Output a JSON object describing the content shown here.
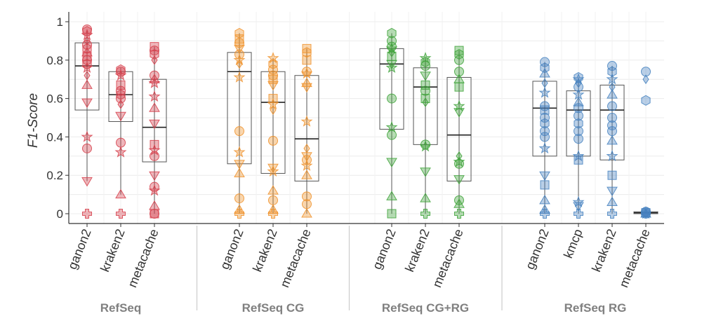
{
  "chart_data": {
    "type": "box",
    "ylabel": "F1-Score",
    "ylim": [
      -0.05,
      1.05
    ],
    "yticks": [
      "0",
      "0.2",
      "0.4",
      "0.6",
      "0.8",
      "1"
    ],
    "grid": true,
    "groups": [
      {
        "name": "RefSeq",
        "color": "#d6404b",
        "tools": [
          {
            "name": "ganon2",
            "q1": 0.54,
            "median": 0.77,
            "q3": 0.89,
            "whisker_low": 0.17,
            "whisker_high": 0.96,
            "points": [
              [
                0.96,
                "circle"
              ],
              [
                0.95,
                "hexagon"
              ],
              [
                0.93,
                "star"
              ],
              [
                0.9,
                "diamond"
              ],
              [
                0.88,
                "circle"
              ],
              [
                0.86,
                "hexagon"
              ],
              [
                0.84,
                "triangle-up"
              ],
              [
                0.82,
                "square"
              ],
              [
                0.8,
                "circle"
              ],
              [
                0.78,
                "hexagon"
              ],
              [
                0.76,
                "star"
              ],
              [
                0.72,
                "diamond"
              ],
              [
                0.67,
                "triangle-up"
              ],
              [
                0.58,
                "triangle-down"
              ],
              [
                0.4,
                "star"
              ],
              [
                0.34,
                "circle"
              ],
              [
                0.17,
                "triangle-down"
              ],
              [
                0.0,
                "plus"
              ]
            ]
          },
          {
            "name": "kraken2",
            "q1": 0.48,
            "median": 0.62,
            "q3": 0.74,
            "whisker_low": 0.1,
            "whisker_high": 0.76,
            "points": [
              [
                0.75,
                "hexagon"
              ],
              [
                0.74,
                "circle"
              ],
              [
                0.72,
                "star"
              ],
              [
                0.67,
                "square"
              ],
              [
                0.64,
                "circle"
              ],
              [
                0.62,
                "hexagon"
              ],
              [
                0.6,
                "circle"
              ],
              [
                0.57,
                "diamond"
              ],
              [
                0.51,
                "triangle-down"
              ],
              [
                0.37,
                "circle"
              ],
              [
                0.32,
                "star"
              ],
              [
                0.1,
                "triangle-up"
              ],
              [
                0.0,
                "plus"
              ]
            ]
          },
          {
            "name": "metacache",
            "q1": 0.27,
            "median": 0.45,
            "q3": 0.7,
            "whisker_low": 0.0,
            "whisker_high": 0.87,
            "points": [
              [
                0.87,
                "square"
              ],
              [
                0.85,
                "circle"
              ],
              [
                0.83,
                "hexagon"
              ],
              [
                0.8,
                "diamond"
              ],
              [
                0.72,
                "circle"
              ],
              [
                0.7,
                "triangle-up"
              ],
              [
                0.68,
                "star"
              ],
              [
                0.61,
                "star"
              ],
              [
                0.55,
                "triangle-up"
              ],
              [
                0.47,
                "triangle-down"
              ],
              [
                0.36,
                "square"
              ],
              [
                0.33,
                "star"
              ],
              [
                0.3,
                "circle"
              ],
              [
                0.2,
                "triangle-down"
              ],
              [
                0.14,
                "circle"
              ],
              [
                0.12,
                "star"
              ],
              [
                0.04,
                "triangle-up"
              ],
              [
                0.0,
                "circle"
              ],
              [
                0.0,
                "square"
              ]
            ]
          }
        ]
      },
      {
        "name": "RefSeq CG",
        "color": "#f0922b",
        "tools": [
          {
            "name": "ganon2",
            "q1": 0.26,
            "median": 0.74,
            "q3": 0.84,
            "whisker_low": 0.0,
            "whisker_high": 0.94,
            "points": [
              [
                0.94,
                "hexagon"
              ],
              [
                0.91,
                "square"
              ],
              [
                0.89,
                "circle"
              ],
              [
                0.86,
                "triangle-down"
              ],
              [
                0.83,
                "circle"
              ],
              [
                0.8,
                "star"
              ],
              [
                0.78,
                "diamond"
              ],
              [
                0.71,
                "star"
              ],
              [
                0.43,
                "circle"
              ],
              [
                0.32,
                "star"
              ],
              [
                0.26,
                "triangle-down"
              ],
              [
                0.21,
                "triangle-up"
              ],
              [
                0.08,
                "circle"
              ],
              [
                0.02,
                "triangle-up"
              ],
              [
                0.0,
                "plus"
              ]
            ]
          },
          {
            "name": "kraken2",
            "q1": 0.21,
            "median": 0.58,
            "q3": 0.74,
            "whisker_low": 0.0,
            "whisker_high": 0.81,
            "points": [
              [
                0.81,
                "star"
              ],
              [
                0.78,
                "hexagon"
              ],
              [
                0.75,
                "circle"
              ],
              [
                0.72,
                "circle"
              ],
              [
                0.7,
                "square"
              ],
              [
                0.67,
                "triangle-down"
              ],
              [
                0.6,
                "square"
              ],
              [
                0.57,
                "star"
              ],
              [
                0.54,
                "diamond"
              ],
              [
                0.38,
                "circle"
              ],
              [
                0.24,
                "triangle-down"
              ],
              [
                0.22,
                "star"
              ],
              [
                0.12,
                "triangle-up"
              ],
              [
                0.07,
                "circle"
              ],
              [
                0.02,
                "triangle-up"
              ],
              [
                0.0,
                "plus"
              ]
            ]
          },
          {
            "name": "metacache",
            "q1": 0.17,
            "median": 0.39,
            "q3": 0.72,
            "whisker_low": 0.0,
            "whisker_high": 0.86,
            "points": [
              [
                0.86,
                "square"
              ],
              [
                0.84,
                "hexagon"
              ],
              [
                0.8,
                "square"
              ],
              [
                0.74,
                "circle"
              ],
              [
                0.73,
                "star"
              ],
              [
                0.68,
                "triangle-up"
              ],
              [
                0.66,
                "triangle-down"
              ],
              [
                0.48,
                "star"
              ],
              [
                0.34,
                "diamond"
              ],
              [
                0.3,
                "triangle-down"
              ],
              [
                0.28,
                "circle"
              ],
              [
                0.25,
                "star"
              ],
              [
                0.2,
                "triangle-up"
              ],
              [
                0.09,
                "circle"
              ],
              [
                0.05,
                "circle"
              ],
              [
                0.0,
                "triangle-up"
              ]
            ]
          }
        ]
      },
      {
        "name": "RefSeq CG+RG",
        "color": "#3ea33a",
        "tools": [
          {
            "name": "ganon2",
            "q1": 0.44,
            "median": 0.78,
            "q3": 0.86,
            "whisker_low": 0.0,
            "whisker_high": 0.94,
            "points": [
              [
                0.94,
                "hexagon"
              ],
              [
                0.9,
                "circle"
              ],
              [
                0.87,
                "circle"
              ],
              [
                0.86,
                "star"
              ],
              [
                0.84,
                "diamond"
              ],
              [
                0.82,
                "square"
              ],
              [
                0.78,
                "triangle-down"
              ],
              [
                0.76,
                "star"
              ],
              [
                0.6,
                "circle"
              ],
              [
                0.45,
                "star"
              ],
              [
                0.41,
                "circle"
              ],
              [
                0.27,
                "triangle-down"
              ],
              [
                0.09,
                "triangle-up"
              ],
              [
                0.0,
                "square"
              ]
            ]
          },
          {
            "name": "kraken2",
            "q1": 0.36,
            "median": 0.66,
            "q3": 0.76,
            "whisker_low": 0.0,
            "whisker_high": 0.81,
            "points": [
              [
                0.81,
                "star"
              ],
              [
                0.79,
                "hexagon"
              ],
              [
                0.77,
                "circle"
              ],
              [
                0.72,
                "triangle-down"
              ],
              [
                0.67,
                "square"
              ],
              [
                0.64,
                "circle"
              ],
              [
                0.6,
                "square"
              ],
              [
                0.58,
                "diamond"
              ],
              [
                0.36,
                "circle"
              ],
              [
                0.35,
                "star"
              ],
              [
                0.22,
                "triangle-down"
              ],
              [
                0.08,
                "triangle-up"
              ],
              [
                0.0,
                "plus"
              ]
            ]
          },
          {
            "name": "metacache",
            "q1": 0.17,
            "median": 0.41,
            "q3": 0.71,
            "whisker_low": 0.0,
            "whisker_high": 0.85,
            "points": [
              [
                0.85,
                "square"
              ],
              [
                0.83,
                "hexagon"
              ],
              [
                0.8,
                "circle"
              ],
              [
                0.74,
                "circle"
              ],
              [
                0.7,
                "triangle-up"
              ],
              [
                0.66,
                "square"
              ],
              [
                0.56,
                "star"
              ],
              [
                0.53,
                "triangle-down"
              ],
              [
                0.3,
                "diamond"
              ],
              [
                0.27,
                "star"
              ],
              [
                0.26,
                "circle"
              ],
              [
                0.18,
                "triangle-down"
              ],
              [
                0.07,
                "circle"
              ],
              [
                0.05,
                "triangle-up"
              ],
              [
                0.0,
                "plus"
              ]
            ]
          }
        ]
      },
      {
        "name": "RefSeq RG",
        "color": "#4682c0",
        "tools": [
          {
            "name": "ganon2",
            "q1": 0.3,
            "median": 0.55,
            "q3": 0.69,
            "whisker_low": 0.0,
            "whisker_high": 0.79,
            "points": [
              [
                0.79,
                "circle"
              ],
              [
                0.76,
                "hexagon"
              ],
              [
                0.73,
                "triangle-up"
              ],
              [
                0.68,
                "diamond"
              ],
              [
                0.63,
                "star"
              ],
              [
                0.56,
                "circle"
              ],
              [
                0.54,
                "square"
              ],
              [
                0.5,
                "circle"
              ],
              [
                0.47,
                "hexagon"
              ],
              [
                0.43,
                "circle"
              ],
              [
                0.4,
                "circle"
              ],
              [
                0.34,
                "star"
              ],
              [
                0.2,
                "triangle-down"
              ],
              [
                0.15,
                "square"
              ],
              [
                0.07,
                "triangle-up"
              ],
              [
                0.02,
                "triangle-up"
              ],
              [
                0.0,
                "plus"
              ]
            ]
          },
          {
            "name": "kmcp",
            "q1": 0.3,
            "median": 0.54,
            "q3": 0.64,
            "whisker_low": 0.0,
            "whisker_high": 0.71,
            "points": [
              [
                0.71,
                "hexagon"
              ],
              [
                0.7,
                "star"
              ],
              [
                0.68,
                "diamond"
              ],
              [
                0.66,
                "circle"
              ],
              [
                0.62,
                "star"
              ],
              [
                0.58,
                "triangle-up"
              ],
              [
                0.55,
                "circle"
              ],
              [
                0.51,
                "circle"
              ],
              [
                0.47,
                "hexagon"
              ],
              [
                0.43,
                "circle"
              ],
              [
                0.39,
                "circle"
              ],
              [
                0.3,
                "star"
              ],
              [
                0.28,
                "square"
              ],
              [
                0.06,
                "star"
              ],
              [
                0.04,
                "triangle-down"
              ],
              [
                0.0,
                "plus"
              ]
            ]
          },
          {
            "name": "kraken2",
            "q1": 0.28,
            "median": 0.54,
            "q3": 0.67,
            "whisker_low": 0.0,
            "whisker_high": 0.77,
            "points": [
              [
                0.77,
                "circle"
              ],
              [
                0.74,
                "hexagon"
              ],
              [
                0.7,
                "star"
              ],
              [
                0.66,
                "diamond"
              ],
              [
                0.62,
                "triangle-up"
              ],
              [
                0.56,
                "circle"
              ],
              [
                0.5,
                "circle"
              ],
              [
                0.46,
                "circle"
              ],
              [
                0.43,
                "circle"
              ],
              [
                0.38,
                "triangle-up"
              ],
              [
                0.3,
                "star"
              ],
              [
                0.2,
                "square"
              ],
              [
                0.12,
                "triangle-down"
              ],
              [
                0.06,
                "triangle-up"
              ],
              [
                0.0,
                "plus"
              ]
            ]
          },
          {
            "name": "metacache",
            "q1": 0.0,
            "median": 0.005,
            "q3": 0.01,
            "whisker_low": 0.0,
            "whisker_high": 0.01,
            "points": [
              [
                0.74,
                "circle"
              ],
              [
                0.7,
                "diamond"
              ],
              [
                0.59,
                "hexagon"
              ],
              [
                0.01,
                "circle"
              ],
              [
                0.01,
                "hexagon"
              ],
              [
                0.005,
                "square"
              ],
              [
                0.0,
                "star"
              ],
              [
                0.0,
                "diamond"
              ],
              [
                0.0,
                "triangle-up"
              ],
              [
                0.0,
                "circle"
              ]
            ]
          }
        ]
      }
    ]
  }
}
